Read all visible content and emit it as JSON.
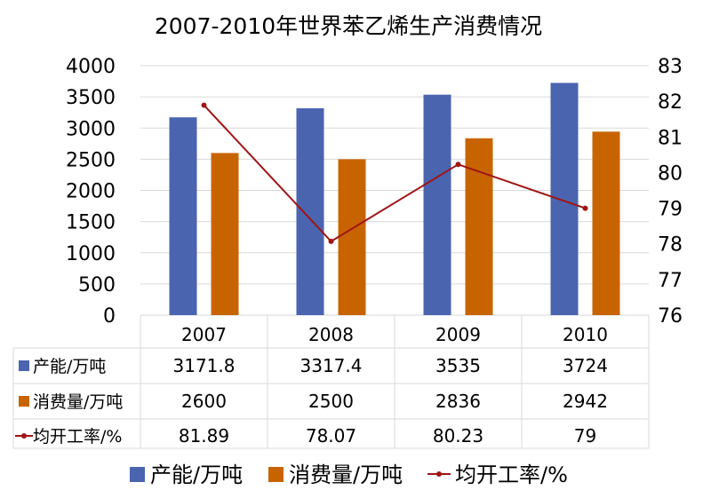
{
  "chart_data": {
    "type": "bar",
    "title": "2007-2010年世界苯乙烯生产消费情况",
    "categories": [
      "2007",
      "2008",
      "2009",
      "2010"
    ],
    "series": [
      {
        "name": "产能/万吨",
        "type": "bar",
        "axis": "left",
        "color": "#4A64AF",
        "values": [
          3171.8,
          3317.4,
          3535,
          3724
        ]
      },
      {
        "name": "消费量/万吨",
        "type": "bar",
        "axis": "left",
        "color": "#C86400",
        "values": [
          2600,
          2500,
          2836,
          2942
        ]
      },
      {
        "name": "均开工率/%",
        "type": "line",
        "axis": "right",
        "color": "#A01414",
        "values": [
          81.89,
          78.07,
          80.23,
          79
        ]
      }
    ],
    "table_values": [
      [
        "3171.8",
        "3317.4",
        "3535",
        "3724"
      ],
      [
        "2600",
        "2500",
        "2836",
        "2942"
      ],
      [
        "81.89",
        "78.07",
        "80.23",
        "79"
      ]
    ],
    "y_left": {
      "min": 0,
      "max": 4000,
      "step": 500,
      "ticks": [
        "0",
        "500",
        "1000",
        "1500",
        "2000",
        "2500",
        "3000",
        "3500",
        "4000"
      ]
    },
    "y_right": {
      "min": 76,
      "max": 83,
      "step": 1,
      "ticks": [
        "76",
        "77",
        "78",
        "79",
        "80",
        "81",
        "82",
        "83"
      ]
    },
    "grid": true,
    "legend_position": "bottom",
    "data_table": true
  }
}
